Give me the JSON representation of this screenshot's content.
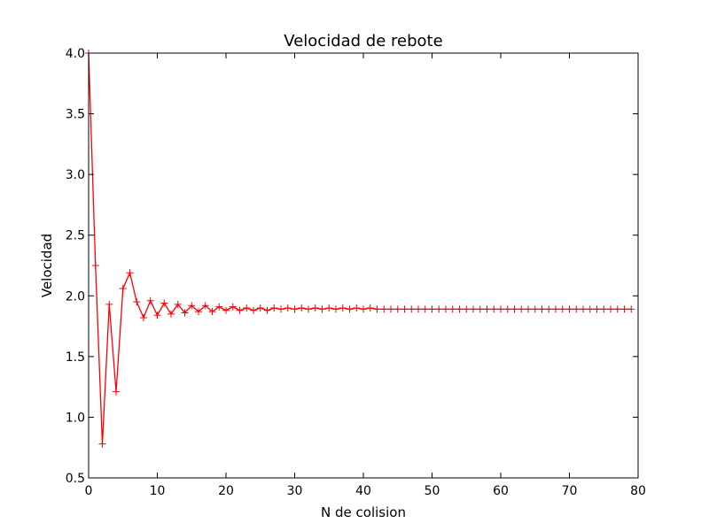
{
  "chart_data": {
    "type": "line",
    "title": "Velocidad de rebote",
    "xlabel": "N de colision",
    "ylabel": "Velocidad",
    "xlim": [
      0,
      80
    ],
    "ylim": [
      0.5,
      4.0
    ],
    "xticks": [
      0,
      10,
      20,
      30,
      40,
      50,
      60,
      70,
      80
    ],
    "yticks": [
      0.5,
      1.0,
      1.5,
      2.0,
      2.5,
      3.0,
      3.5,
      4.0
    ],
    "xtick_labels": [
      "0",
      "10",
      "20",
      "30",
      "40",
      "50",
      "60",
      "70",
      "80"
    ],
    "ytick_labels": [
      "0.5",
      "1.0",
      "1.5",
      "2.0",
      "2.5",
      "3.0",
      "3.5",
      "4.0"
    ],
    "grid": false,
    "series": [
      {
        "color": "#ff0000",
        "marker": "+",
        "x": [
          0,
          1,
          2,
          3,
          4,
          5,
          6,
          7,
          8,
          9,
          10,
          11,
          12,
          13,
          14,
          15,
          16,
          17,
          18,
          19,
          20,
          21,
          22,
          23,
          24,
          25,
          26,
          27,
          28,
          29,
          30,
          31,
          32,
          33,
          34,
          35,
          36,
          37,
          38,
          39,
          40,
          41,
          42,
          43,
          44,
          45,
          46,
          47,
          48,
          49,
          50,
          51,
          52,
          53,
          54,
          55,
          56,
          57,
          58,
          59,
          60,
          61,
          62,
          63,
          64,
          65,
          66,
          67,
          68,
          69,
          70,
          71,
          72,
          73,
          74,
          75,
          76,
          77,
          78,
          79
        ],
        "y": [
          4.0,
          2.25,
          0.78,
          1.93,
          1.21,
          2.06,
          2.19,
          1.95,
          1.82,
          1.96,
          1.84,
          1.94,
          1.85,
          1.93,
          1.86,
          1.92,
          1.87,
          1.92,
          1.87,
          1.91,
          1.88,
          1.91,
          1.88,
          1.9,
          1.88,
          1.9,
          1.88,
          1.9,
          1.89,
          1.9,
          1.89,
          1.9,
          1.89,
          1.9,
          1.89,
          1.9,
          1.89,
          1.9,
          1.89,
          1.9,
          1.89,
          1.9,
          1.89,
          1.89,
          1.89,
          1.89,
          1.89,
          1.89,
          1.89,
          1.89,
          1.89,
          1.89,
          1.89,
          1.89,
          1.89,
          1.89,
          1.89,
          1.89,
          1.89,
          1.89,
          1.89,
          1.89,
          1.89,
          1.89,
          1.89,
          1.89,
          1.89,
          1.89,
          1.89,
          1.89,
          1.89,
          1.89,
          1.89,
          1.89,
          1.89,
          1.89,
          1.89,
          1.89,
          1.89,
          1.89
        ]
      }
    ]
  }
}
